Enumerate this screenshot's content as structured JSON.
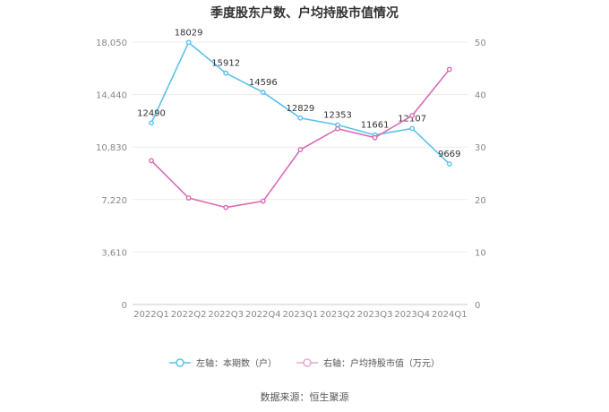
{
  "page": {
    "title": "季度股东户数、户均持股市值情况",
    "source": "数据来源：恒生聚源"
  },
  "chart_data": {
    "type": "line",
    "title": "季度股东户数、户均持股市值情况",
    "categories": [
      "2022Q1",
      "2022Q2",
      "2022Q3",
      "2022Q4",
      "2023Q1",
      "2023Q2",
      "2023Q3",
      "2023Q4",
      "2024Q1"
    ],
    "left_axis": {
      "min": 0,
      "max": 18050,
      "ticks": [
        "0",
        "3,610",
        "7,220",
        "10,830",
        "14,440",
        "18,050"
      ],
      "tick_values": [
        0,
        3610,
        7220,
        10830,
        14440,
        18050
      ]
    },
    "right_axis": {
      "min": 0,
      "max": 50,
      "ticks": [
        "0",
        "10",
        "20",
        "30",
        "40",
        "50"
      ],
      "tick_values": [
        0,
        10,
        20,
        30,
        40,
        50
      ]
    },
    "series": [
      {
        "name": "左轴：本期数（户）",
        "axis": "left",
        "color": "#5bc0eb",
        "values": [
          12490,
          18029,
          15912,
          14596,
          12829,
          12353,
          11661,
          12107,
          9669
        ],
        "labels": [
          "12490",
          "18029",
          "15912",
          "14596",
          "12829",
          "12353",
          "11661",
          "12107",
          "9669"
        ]
      },
      {
        "name": "右轴：户均持股市值（万元）",
        "axis": "right",
        "color": "#d96bb3",
        "values": [
          27.4,
          20.3,
          18.5,
          19.7,
          29.5,
          33.5,
          31.8,
          36.0,
          44.8
        ]
      }
    ],
    "grid": true,
    "legend_position": "bottom"
  }
}
